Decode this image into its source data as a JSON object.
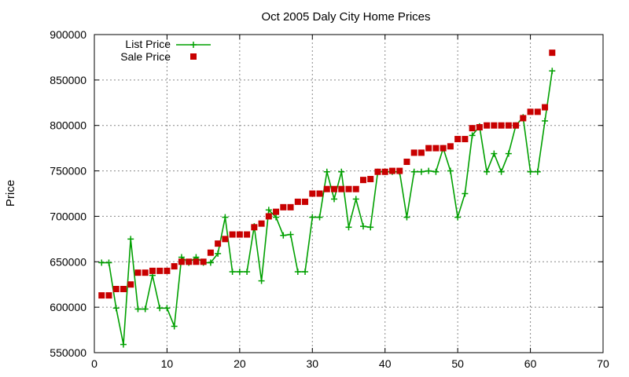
{
  "chart_data": {
    "type": "line",
    "title": "Oct 2005 Daly City Home Prices",
    "xlabel": "",
    "ylabel": "Price",
    "xlim": [
      0,
      70
    ],
    "ylim": [
      550000,
      900000
    ],
    "x_ticks": [
      0,
      10,
      20,
      30,
      40,
      50,
      60,
      70
    ],
    "y_ticks": [
      550000,
      600000,
      650000,
      700000,
      750000,
      800000,
      850000,
      900000
    ],
    "grid": true,
    "legend_position": "top-left",
    "series": [
      {
        "name": "List Price",
        "style": "line-plus",
        "color": "#00a000",
        "x": [
          1,
          2,
          3,
          4,
          5,
          6,
          7,
          8,
          9,
          10,
          11,
          12,
          13,
          14,
          15,
          16,
          17,
          18,
          19,
          20,
          21,
          22,
          23,
          24,
          25,
          26,
          27,
          28,
          29,
          30,
          31,
          32,
          33,
          34,
          35,
          36,
          37,
          38,
          39,
          40,
          41,
          42,
          43,
          44,
          45,
          46,
          47,
          48,
          49,
          50,
          51,
          52,
          53,
          54,
          55,
          56,
          57,
          58,
          59,
          60,
          61,
          62,
          63
        ],
        "y": [
          649000,
          649000,
          599000,
          559000,
          675000,
          598000,
          598000,
          635000,
          599000,
          599000,
          579000,
          655000,
          649000,
          655000,
          649000,
          649000,
          659000,
          699000,
          639000,
          639000,
          639000,
          689000,
          629000,
          707000,
          699000,
          679000,
          680000,
          639000,
          639000,
          699000,
          699000,
          749000,
          719000,
          749000,
          688000,
          719000,
          689000,
          688000,
          749000,
          749000,
          749000,
          749000,
          699000,
          749000,
          749000,
          750000,
          749000,
          775000,
          750000,
          699000,
          725000,
          789000,
          799000,
          749000,
          769000,
          749000,
          769000,
          800000,
          809000,
          749000,
          749000,
          805000,
          860000
        ]
      },
      {
        "name": "Sale Price",
        "style": "square-points",
        "color": "#c80000",
        "x": [
          1,
          2,
          3,
          4,
          5,
          6,
          7,
          8,
          9,
          10,
          11,
          12,
          13,
          14,
          15,
          16,
          17,
          18,
          19,
          20,
          21,
          22,
          23,
          24,
          25,
          26,
          27,
          28,
          29,
          30,
          31,
          32,
          33,
          34,
          35,
          36,
          37,
          38,
          39,
          40,
          41,
          42,
          43,
          44,
          45,
          46,
          47,
          48,
          49,
          50,
          51,
          52,
          53,
          54,
          55,
          56,
          57,
          58,
          59,
          60,
          61,
          62,
          63
        ],
        "y": [
          613000,
          613000,
          620000,
          620000,
          625000,
          638000,
          638000,
          640000,
          640000,
          640000,
          645000,
          650000,
          650000,
          650000,
          650000,
          660000,
          670000,
          675000,
          680000,
          680000,
          680000,
          688000,
          692000,
          700000,
          705000,
          710000,
          710000,
          716000,
          716000,
          725000,
          725000,
          730000,
          730000,
          730000,
          730000,
          730000,
          740000,
          741000,
          749000,
          749000,
          750000,
          750000,
          760000,
          770000,
          770000,
          775000,
          775000,
          775000,
          777000,
          785000,
          785000,
          797000,
          798000,
          800000,
          800000,
          800000,
          800000,
          800000,
          808000,
          815000,
          815000,
          820000,
          880000
        ]
      }
    ]
  }
}
